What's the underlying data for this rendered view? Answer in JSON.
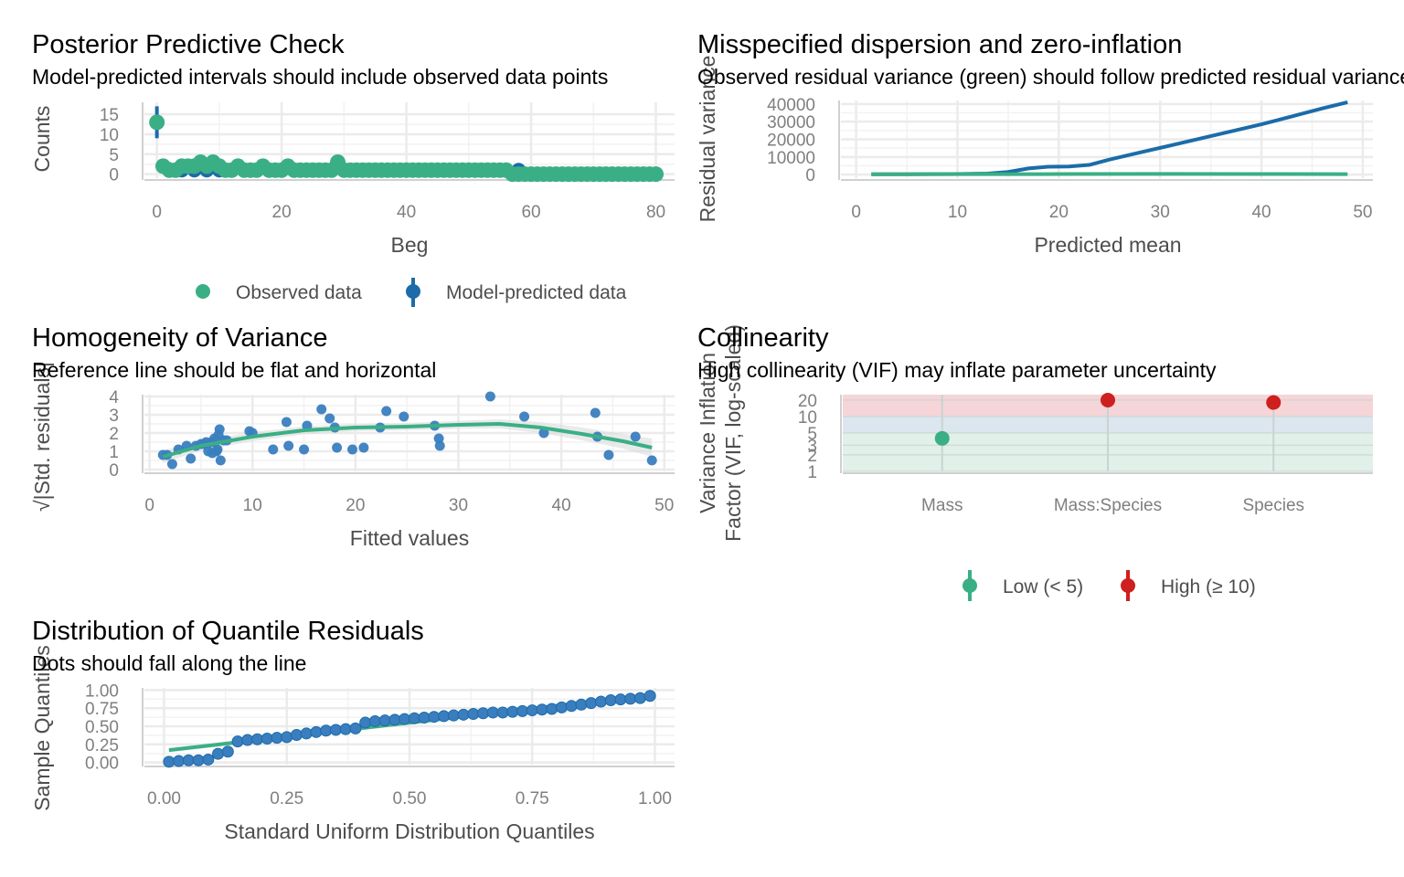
{
  "colors": {
    "green": "#3aaf85",
    "blue": "#1b6ca8",
    "blue_point": "#3a7ebf",
    "red": "#cd201f",
    "grid": "#ebebeb",
    "axis": "#d0d0d0",
    "band_red": "#f5d5d8",
    "band_blue": "#dce6ef",
    "band_green": "#e1f1e9"
  },
  "chart_data": [
    {
      "id": "ppc",
      "type": "scatter",
      "title": "Posterior Predictive Check",
      "subtitle": "Model-predicted intervals should include observed data points",
      "xlabel": "Beg",
      "ylabel": "Counts",
      "xlim": [
        -2,
        83
      ],
      "ylim": [
        -1,
        18
      ],
      "xticks": [
        0,
        20,
        40,
        60,
        80
      ],
      "yticks": [
        0,
        5,
        10,
        15
      ],
      "grid": true,
      "legend": {
        "position": "bottom",
        "entries": [
          {
            "label": "Observed data",
            "color": "green",
            "shape": "point"
          },
          {
            "label": "Model-predicted data",
            "color": "blue",
            "shape": "pointrange"
          }
        ]
      },
      "observed": {
        "x": [
          0,
          1,
          2,
          3,
          4,
          5,
          6,
          7,
          8,
          9,
          10,
          11,
          12,
          13,
          14,
          15,
          16,
          17,
          18,
          19,
          20,
          21,
          22,
          23,
          24,
          25,
          26,
          27,
          28,
          29,
          30,
          31,
          32,
          33,
          34,
          35,
          36,
          37,
          38,
          39,
          40,
          41,
          42,
          43,
          44,
          45,
          46,
          47,
          48,
          49,
          50,
          51,
          52,
          53,
          54,
          55,
          56,
          57,
          58,
          59,
          60,
          61,
          62,
          63,
          64,
          65,
          66,
          67,
          68,
          69,
          70,
          71,
          72,
          73,
          74,
          75,
          76,
          77,
          78,
          79,
          80
        ],
        "y": [
          13,
          2,
          1,
          1,
          2,
          2,
          2,
          3,
          2,
          3,
          2,
          1,
          1,
          2,
          1,
          1,
          1,
          2,
          1,
          1,
          1,
          2,
          1,
          1,
          1,
          1,
          1,
          1,
          1,
          3,
          1,
          1,
          1,
          1,
          1,
          1,
          1,
          1,
          1,
          1,
          1,
          1,
          1,
          1,
          1,
          1,
          1,
          1,
          1,
          1,
          1,
          1,
          1,
          1,
          1,
          1,
          1,
          0,
          0,
          0,
          0,
          0,
          0,
          0,
          0,
          0,
          0,
          0,
          0,
          0,
          0,
          0,
          0,
          0,
          0,
          0,
          0,
          0,
          0,
          0,
          0
        ]
      },
      "predicted": {
        "x": [
          0,
          2,
          4,
          6,
          8,
          10,
          12,
          14,
          16,
          18,
          20,
          22,
          24,
          26,
          28,
          30,
          32,
          34,
          36,
          38,
          40,
          42,
          44,
          46,
          48,
          50,
          52,
          54,
          56,
          58,
          60,
          62,
          64,
          66,
          68,
          70,
          72,
          74,
          76,
          78,
          80
        ],
        "y": [
          13,
          1,
          1,
          1,
          1,
          1,
          1,
          1,
          1,
          1,
          1,
          1,
          1,
          1,
          1,
          1,
          1,
          1,
          1,
          1,
          1,
          1,
          1,
          1,
          1,
          1,
          1,
          1,
          1,
          1,
          0,
          0,
          0,
          0,
          0,
          0,
          0,
          0,
          0,
          0,
          0
        ],
        "lo": [
          9,
          0,
          0,
          0,
          0,
          0,
          0,
          0,
          0,
          0,
          0,
          0,
          0,
          0,
          0,
          0,
          0,
          0,
          0,
          0,
          0,
          0,
          0,
          0,
          0,
          0,
          0,
          0,
          0,
          0,
          0,
          0,
          0,
          0,
          0,
          0,
          0,
          0,
          0,
          0,
          0
        ],
        "hi": [
          17,
          3,
          3,
          3,
          2,
          2,
          2,
          2,
          2,
          2,
          2,
          2,
          2,
          2,
          2,
          2,
          2,
          1,
          1,
          1,
          1,
          1,
          1,
          1,
          1,
          1,
          1,
          1,
          1,
          1,
          1,
          1,
          1,
          1,
          1,
          1,
          1,
          1,
          1,
          1,
          1
        ]
      }
    },
    {
      "id": "disp",
      "type": "line",
      "title": "Misspecified dispersion and zero-inflation",
      "subtitle": "Observed residual variance (green) should follow predicted residual variance (blue)",
      "xlabel": "Predicted mean",
      "ylabel": "Residual variance",
      "xlim": [
        -1.5,
        51
      ],
      "ylim": [
        -2000,
        42000
      ],
      "xticks": [
        0,
        10,
        20,
        30,
        40,
        50
      ],
      "yticks": [
        0,
        10000,
        20000,
        30000,
        40000
      ],
      "grid": true,
      "series": [
        {
          "name": "Predicted residual variance",
          "color": "blue",
          "x": [
            1.5,
            5,
            10,
            13,
            15,
            17,
            19,
            21,
            23,
            25,
            28,
            31,
            34,
            37,
            40,
            43,
            46,
            48.5
          ],
          "y": [
            200,
            200,
            300,
            600,
            1500,
            3500,
            4500,
            4600,
            5500,
            8500,
            12500,
            16500,
            20500,
            24500,
            28500,
            33000,
            37500,
            41000
          ]
        },
        {
          "name": "Observed residual variance",
          "color": "green",
          "x": [
            1.5,
            10,
            20,
            30,
            40,
            48.5
          ],
          "y": [
            200,
            250,
            300,
            400,
            350,
            250
          ]
        }
      ]
    },
    {
      "id": "homog",
      "type": "scatter",
      "title": "Homogeneity of Variance",
      "subtitle": "Reference line should be flat and horizontal",
      "xlabel": "Fitted values",
      "ylabel": "√|Std. residuals|",
      "xlim": [
        -0.5,
        51
      ],
      "ylim": [
        -0.1,
        4.1
      ],
      "xticks": [
        0,
        10,
        20,
        30,
        40,
        50
      ],
      "yticks": [
        0,
        1,
        2,
        3,
        4
      ],
      "grid": true,
      "points": {
        "x": [
          1.3,
          1.7,
          2.2,
          2.8,
          3.6,
          4.0,
          4.5,
          5.0,
          5.3,
          5.5,
          5.7,
          6.0,
          6.1,
          6.3,
          6.5,
          6.6,
          6.7,
          6.8,
          6.9,
          7.2,
          7.5,
          9.7,
          10.0,
          12.0,
          13.3,
          13.5,
          15.0,
          15.3,
          16.7,
          17.5,
          18.0,
          18.2,
          19.7,
          20.8,
          22.4,
          23.0,
          24.7,
          27.7,
          28.1,
          28.2,
          33.1,
          36.4,
          38.3,
          43.3,
          43.5,
          44.6,
          47.2,
          48.8
        ],
        "y": [
          0.8,
          0.8,
          0.3,
          1.1,
          1.3,
          0.6,
          1.3,
          1.4,
          1.4,
          1.5,
          1.0,
          1.5,
          0.9,
          1.7,
          1.0,
          1.1,
          1.9,
          2.2,
          0.5,
          1.6,
          1.6,
          2.1,
          2.0,
          1.1,
          2.6,
          1.3,
          1.1,
          2.4,
          3.3,
          2.8,
          2.3,
          1.2,
          1.1,
          1.2,
          2.3,
          3.2,
          2.9,
          2.4,
          1.7,
          1.3,
          4.0,
          2.9,
          2.0,
          3.1,
          1.8,
          0.8,
          1.8,
          0.5
        ]
      },
      "smooth": {
        "x": [
          1.3,
          5,
          10,
          15,
          20,
          25,
          30,
          34,
          38,
          42,
          46,
          48.8
        ],
        "y": [
          0.7,
          1.3,
          1.8,
          2.15,
          2.3,
          2.35,
          2.45,
          2.5,
          2.3,
          1.95,
          1.55,
          1.2
        ],
        "band": [
          0.35,
          0.25,
          0.25,
          0.22,
          0.2,
          0.2,
          0.22,
          0.25,
          0.3,
          0.35,
          0.4,
          0.5
        ]
      }
    },
    {
      "id": "vif",
      "type": "scatter",
      "title": "Collinearity",
      "subtitle": "High collinearity (VIF) may inflate parameter uncertainty",
      "xlabel": "",
      "ylabel": "Variance Inflation Factor (VIF, log-scaled)",
      "categories": [
        "Mass",
        "Mass:Species",
        "Species"
      ],
      "values": [
        4,
        20,
        18
      ],
      "ci_lo": [
        3.2,
        15,
        14
      ],
      "ci_hi": [
        5.2,
        28,
        24
      ],
      "point_colors": [
        "green",
        "red",
        "red"
      ],
      "yscale": "log",
      "ylim": [
        1,
        25
      ],
      "yticks": [
        1,
        2,
        3,
        5,
        10,
        20
      ],
      "ytick_labels": [
        "1",
        "2",
        "3",
        "5",
        "10",
        "20"
      ],
      "bands": [
        {
          "from": 1,
          "to": 5,
          "color": "band_green"
        },
        {
          "from": 5,
          "to": 10,
          "color": "band_blue"
        },
        {
          "from": 10,
          "to": 25,
          "color": "band_red"
        }
      ],
      "legend": {
        "position": "bottom",
        "entries": [
          {
            "label": "Low (< 5)",
            "color": "green"
          },
          {
            "label": "High (≥ 10)",
            "color": "red"
          }
        ]
      }
    },
    {
      "id": "qq",
      "type": "scatter",
      "title": "Distribution of Quantile Residuals",
      "subtitle": "Dots should fall along the line",
      "xlabel": "Standard Uniform Distribution Quantiles",
      "ylabel": "Sample Quantiles",
      "xlim": [
        -0.04,
        1.04
      ],
      "ylim": [
        -0.03,
        1.03
      ],
      "xticks": [
        0.0,
        0.25,
        0.5,
        0.75,
        1.0
      ],
      "xtick_labels": [
        "0.00",
        "0.25",
        "0.50",
        "0.75",
        "1.00"
      ],
      "yticks": [
        0.0,
        0.25,
        0.5,
        0.75,
        1.0
      ],
      "ytick_labels": [
        "0.00",
        "0.25",
        "0.50",
        "0.75",
        "1.00"
      ],
      "grid": true,
      "points": {
        "x": [
          0.01,
          0.03,
          0.05,
          0.07,
          0.09,
          0.11,
          0.13,
          0.15,
          0.17,
          0.19,
          0.21,
          0.23,
          0.25,
          0.27,
          0.29,
          0.31,
          0.33,
          0.35,
          0.37,
          0.39,
          0.41,
          0.43,
          0.45,
          0.47,
          0.49,
          0.51,
          0.53,
          0.55,
          0.57,
          0.59,
          0.61,
          0.63,
          0.65,
          0.67,
          0.69,
          0.71,
          0.73,
          0.75,
          0.77,
          0.79,
          0.81,
          0.83,
          0.85,
          0.87,
          0.89,
          0.91,
          0.93,
          0.95,
          0.97,
          0.99
        ],
        "y": [
          0.01,
          0.02,
          0.03,
          0.03,
          0.04,
          0.12,
          0.15,
          0.29,
          0.31,
          0.32,
          0.33,
          0.34,
          0.35,
          0.38,
          0.4,
          0.42,
          0.44,
          0.45,
          0.46,
          0.47,
          0.55,
          0.57,
          0.58,
          0.59,
          0.6,
          0.61,
          0.62,
          0.63,
          0.64,
          0.65,
          0.66,
          0.67,
          0.68,
          0.69,
          0.69,
          0.7,
          0.71,
          0.72,
          0.73,
          0.74,
          0.76,
          0.78,
          0.8,
          0.82,
          0.84,
          0.86,
          0.87,
          0.88,
          0.89,
          0.92
        ]
      },
      "line": {
        "x": [
          0.01,
          0.99
        ],
        "y": [
          0.17,
          0.93
        ]
      }
    }
  ]
}
